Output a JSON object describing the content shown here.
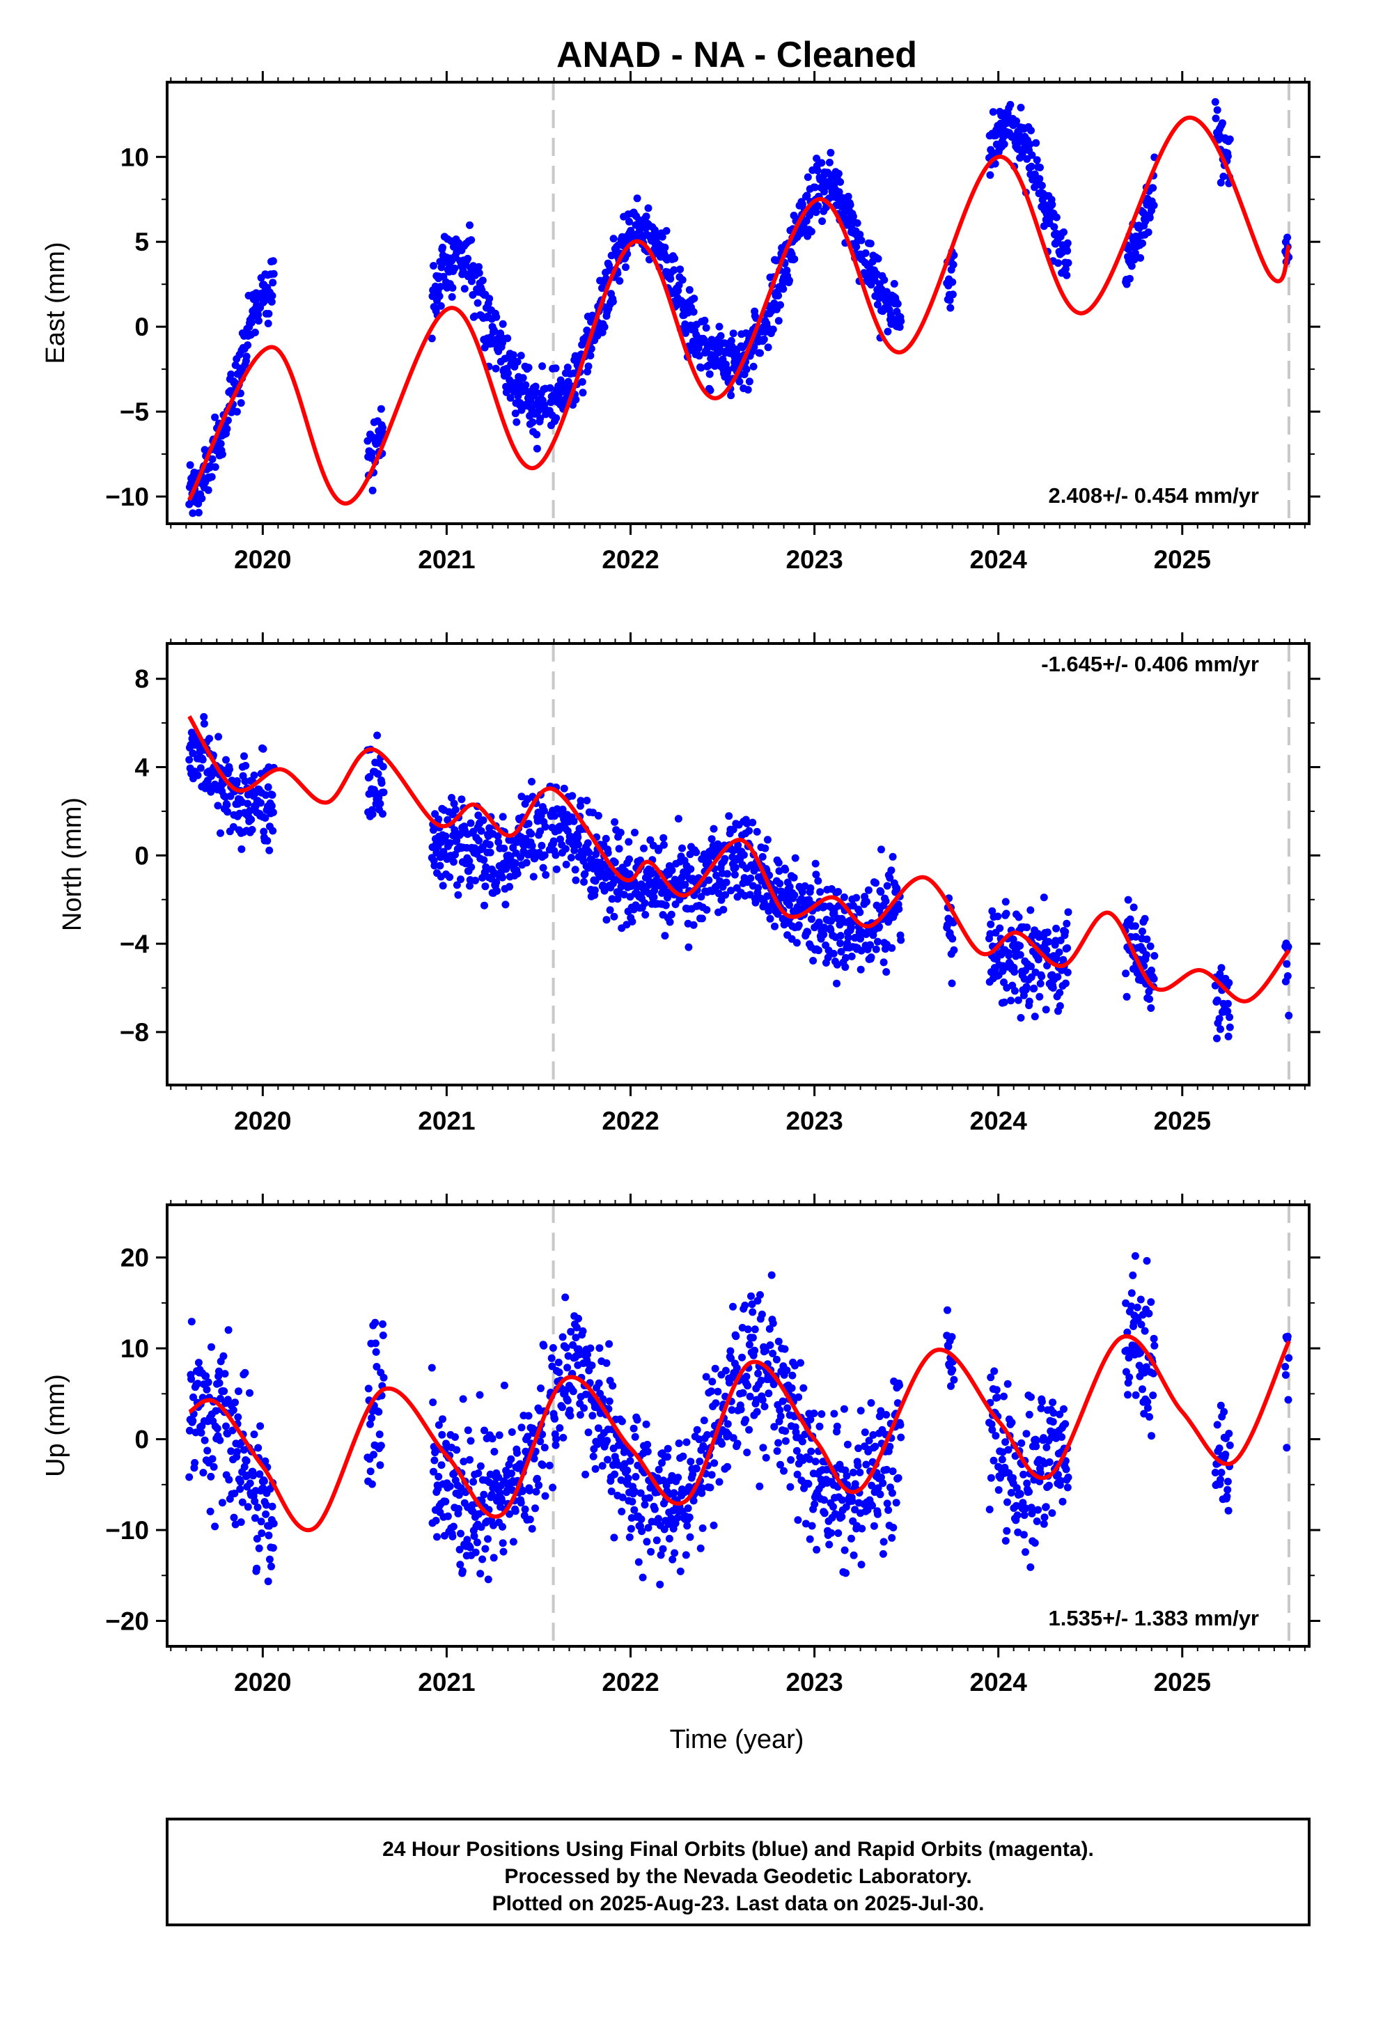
{
  "title": "ANAD  - NA - Cleaned",
  "x_axis_label": "Time (year)",
  "footer": {
    "line1": "24 Hour Positions Using Final Orbits (blue) and Rapid Orbits (magenta).",
    "line2": "Processed by the Nevada Geodetic Laboratory.",
    "line3": "Plotted on 2025-Aug-23. Last data on 2025-Jul-30."
  },
  "colors": {
    "final_orbits": "#0000ff",
    "model": "#ff0000",
    "equipment_change": "#c8c8c8",
    "frame": "#000000"
  },
  "chart_data": [
    {
      "type": "scatter",
      "name": "east",
      "ylabel": "East (mm)",
      "rate_text": "2.408+/- 0.454 mm/yr",
      "rate_position": "bottom-right",
      "xlim": [
        2019.48,
        2025.69
      ],
      "ylim": [
        -11.6,
        14.4
      ],
      "x_ticks": [
        2020,
        2021,
        2022,
        2023,
        2024,
        2025
      ],
      "x_tick_labels": [
        "2020",
        "2021",
        "2022",
        "2023",
        "2024",
        "2025"
      ],
      "y_ticks": [
        -10,
        -5,
        0,
        5,
        10
      ],
      "y_tick_labels": [
        "−10",
        "−5",
        "0",
        "5",
        "10"
      ],
      "grid": false,
      "equipment_change_lines": [
        2021.58,
        2025.58
      ],
      "trend": {
        "rate": 2.408,
        "intercept_2022": 0.7
      },
      "seasonal": [
        {
          "epoch": 2019.6,
          "annual_amp": 5.8,
          "semiannual_amp": 0.9
        },
        {
          "epoch": 2020.6,
          "annual_amp": 5.0,
          "semiannual_amp": 0.8
        },
        {
          "epoch": 2021.6,
          "annual_amp": 4.6,
          "semiannual_amp": 0.6
        },
        {
          "epoch": 2022.6,
          "annual_amp": 4.5,
          "semiannual_amp": 0.5
        },
        {
          "epoch": 2023.6,
          "annual_amp": 5.6,
          "semiannual_amp": 0.6
        },
        {
          "epoch": 2024.6,
          "annual_amp": 5.5,
          "semiannual_amp": 0.6
        }
      ],
      "annual_peak_phase": 0.05,
      "scatter": {
        "noise_sd": 0.9
      },
      "data_segments": [
        [
          2019.6,
          2020.06
        ],
        [
          2020.57,
          2020.66
        ],
        [
          2020.92,
          2021.54
        ],
        [
          2021.56,
          2022.88
        ],
        [
          2022.88,
          2023.26
        ],
        [
          2023.27,
          2023.47
        ],
        [
          2023.72,
          2023.76
        ],
        [
          2023.95,
          2024.38
        ],
        [
          2024.69,
          2024.85
        ],
        [
          2025.18,
          2025.26
        ],
        [
          2025.56,
          2025.58
        ]
      ],
      "model_curve": [
        [
          2019.6,
          -10.2
        ],
        [
          2020.05,
          -1.2
        ],
        [
          2020.46,
          -10.4
        ],
        [
          2021.02,
          1.1
        ],
        [
          2021.48,
          -8.3
        ],
        [
          2022.02,
          5.0
        ],
        [
          2022.47,
          -4.2
        ],
        [
          2023.02,
          7.5
        ],
        [
          2023.47,
          -1.5
        ],
        [
          2024.0,
          10.0
        ],
        [
          2024.46,
          0.8
        ],
        [
          2025.03,
          12.3
        ],
        [
          2025.48,
          3.0
        ],
        [
          2025.58,
          4.8
        ]
      ]
    },
    {
      "type": "scatter",
      "name": "north",
      "ylabel": "North (mm)",
      "rate_text": "-1.645+/- 0.406 mm/yr",
      "rate_position": "top-right",
      "xlim": [
        2019.48,
        2025.69
      ],
      "ylim": [
        -10.4,
        9.6
      ],
      "x_ticks": [
        2020,
        2021,
        2022,
        2023,
        2024,
        2025
      ],
      "x_tick_labels": [
        "2020",
        "2021",
        "2022",
        "2023",
        "2024",
        "2025"
      ],
      "y_ticks": [
        -8,
        -4,
        0,
        4,
        8
      ],
      "y_tick_labels": [
        "−8",
        "−4",
        "0",
        "4",
        "8"
      ],
      "grid": false,
      "equipment_change_lines": [
        2021.58,
        2025.58
      ],
      "trend": {
        "rate": -1.645,
        "intercept_2022": -0.5
      },
      "seasonal": [
        {
          "epoch": 2019.6,
          "annual_amp": 0.9,
          "semiannual_amp": 0.4
        },
        {
          "epoch": 2021.6,
          "annual_amp": 0.9,
          "semiannual_amp": 0.3
        },
        {
          "epoch": 2023.6,
          "annual_amp": 1.0,
          "semiannual_amp": 0.3
        }
      ],
      "annual_peak_phase": 0.6,
      "scatter": {
        "noise_sd": 1.0
      },
      "data_segments": [
        [
          2019.6,
          2020.06
        ],
        [
          2020.57,
          2020.66
        ],
        [
          2020.92,
          2021.54
        ],
        [
          2021.56,
          2022.88
        ],
        [
          2022.88,
          2023.26
        ],
        [
          2023.27,
          2023.47
        ],
        [
          2023.72,
          2023.76
        ],
        [
          2023.95,
          2024.38
        ],
        [
          2024.69,
          2024.85
        ],
        [
          2025.18,
          2025.26
        ],
        [
          2025.56,
          2025.58
        ]
      ],
      "model_curve": [
        [
          2019.6,
          6.3
        ],
        [
          2019.85,
          3.0
        ],
        [
          2020.1,
          3.9
        ],
        [
          2020.35,
          2.4
        ],
        [
          2020.6,
          4.8
        ],
        [
          2020.95,
          1.4
        ],
        [
          2021.15,
          2.3
        ],
        [
          2021.35,
          0.9
        ],
        [
          2021.58,
          3.0
        ],
        [
          2021.95,
          -1.0
        ],
        [
          2022.1,
          -0.3
        ],
        [
          2022.3,
          -1.8
        ],
        [
          2022.6,
          0.7
        ],
        [
          2022.85,
          -2.7
        ],
        [
          2023.1,
          -1.9
        ],
        [
          2023.3,
          -3.2
        ],
        [
          2023.6,
          -1.0
        ],
        [
          2023.9,
          -4.4
        ],
        [
          2024.1,
          -3.5
        ],
        [
          2024.35,
          -5.0
        ],
        [
          2024.6,
          -2.6
        ],
        [
          2024.85,
          -6.0
        ],
        [
          2025.1,
          -5.2
        ],
        [
          2025.35,
          -6.6
        ],
        [
          2025.58,
          -4.3
        ]
      ]
    },
    {
      "type": "scatter",
      "name": "up",
      "ylabel": "Up (mm)",
      "rate_text": "1.535+/- 1.383 mm/yr",
      "rate_position": "bottom-right",
      "xlim": [
        2019.48,
        2025.69
      ],
      "ylim": [
        -22.8,
        25.8
      ],
      "x_ticks": [
        2020,
        2021,
        2022,
        2023,
        2024,
        2025
      ],
      "x_tick_labels": [
        "2020",
        "2021",
        "2022",
        "2023",
        "2024",
        "2025"
      ],
      "y_ticks": [
        -20,
        -10,
        0,
        10,
        20
      ],
      "y_tick_labels": [
        "−20",
        "−10",
        "0",
        "10",
        "20"
      ],
      "grid": false,
      "equipment_change_lines": [
        2021.58,
        2025.58
      ],
      "trend": {
        "rate": 1.535,
        "intercept_2022": -1.0
      },
      "seasonal": [
        {
          "epoch": 2019.6,
          "annual_amp": 6.5,
          "semiannual_amp": 1.0
        },
        {
          "epoch": 2021.6,
          "annual_amp": 7.5,
          "semiannual_amp": 1.0
        },
        {
          "epoch": 2023.6,
          "annual_amp": 7.0,
          "semiannual_amp": 1.0
        }
      ],
      "annual_peak_phase": 0.68,
      "scatter": {
        "noise_sd": 4.2
      },
      "data_segments": [
        [
          2019.6,
          2020.06
        ],
        [
          2020.57,
          2020.66
        ],
        [
          2020.92,
          2021.54
        ],
        [
          2021.56,
          2022.88
        ],
        [
          2022.88,
          2023.26
        ],
        [
          2023.27,
          2023.47
        ],
        [
          2023.72,
          2023.76
        ],
        [
          2023.95,
          2024.38
        ],
        [
          2024.69,
          2024.85
        ],
        [
          2025.18,
          2025.26
        ],
        [
          2025.56,
          2025.58
        ]
      ],
      "model_curve": [
        [
          2019.6,
          3.0
        ],
        [
          2019.75,
          4.0
        ],
        [
          2020.0,
          -3.0
        ],
        [
          2020.28,
          -9.8
        ],
        [
          2020.65,
          5.4
        ],
        [
          2021.0,
          -1.8
        ],
        [
          2021.3,
          -8.3
        ],
        [
          2021.65,
          6.7
        ],
        [
          2022.0,
          -1.0
        ],
        [
          2022.3,
          -6.8
        ],
        [
          2022.65,
          8.4
        ],
        [
          2023.0,
          0.0
        ],
        [
          2023.25,
          -5.5
        ],
        [
          2023.65,
          9.7
        ],
        [
          2024.0,
          2.0
        ],
        [
          2024.28,
          -4.0
        ],
        [
          2024.67,
          11.2
        ],
        [
          2025.0,
          3.0
        ],
        [
          2025.28,
          -2.5
        ],
        [
          2025.58,
          10.8
        ]
      ]
    }
  ]
}
